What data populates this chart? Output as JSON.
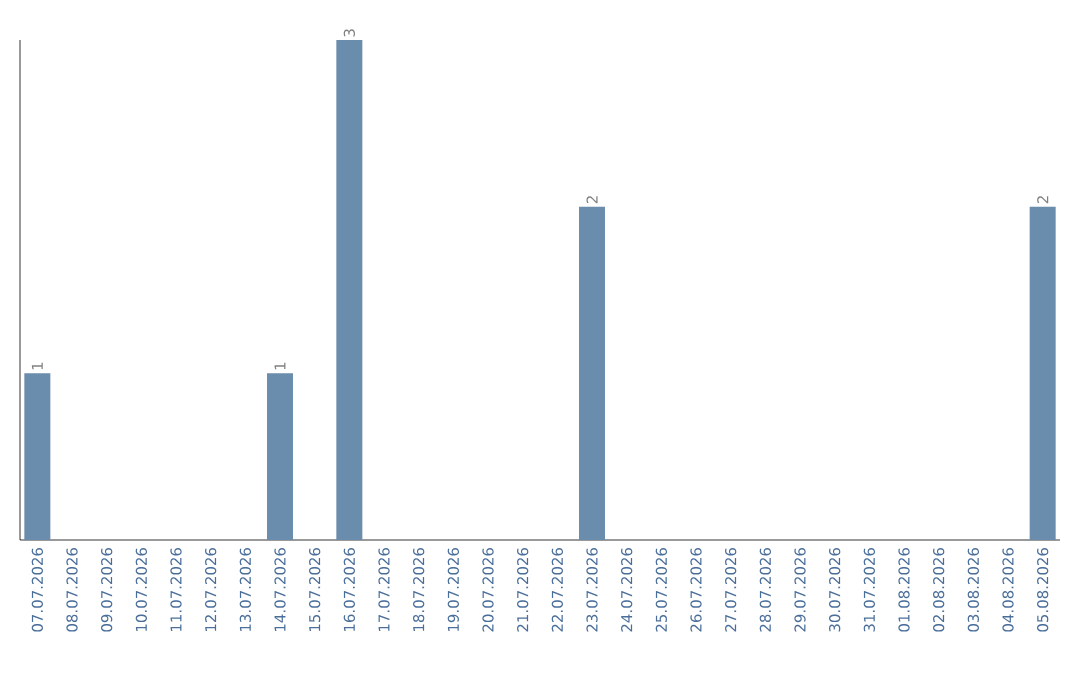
{
  "chart_data": {
    "type": "bar",
    "categories": [
      "07.07.2026",
      "08.07.2026",
      "09.07.2026",
      "10.07.2026",
      "11.07.2026",
      "12.07.2026",
      "13.07.2026",
      "14.07.2026",
      "15.07.2026",
      "16.07.2026",
      "17.07.2026",
      "18.07.2026",
      "19.07.2026",
      "20.07.2026",
      "21.07.2026",
      "22.07.2026",
      "23.07.2026",
      "24.07.2026",
      "25.07.2026",
      "26.07.2026",
      "27.07.2026",
      "28.07.2026",
      "29.07.2026",
      "30.07.2026",
      "31.07.2026",
      "01.08.2026",
      "02.08.2026",
      "03.08.2026",
      "04.08.2026",
      "05.08.2026"
    ],
    "values": [
      1,
      0,
      0,
      0,
      0,
      0,
      0,
      1,
      0,
      3,
      0,
      0,
      0,
      0,
      0,
      0,
      2,
      0,
      0,
      0,
      0,
      0,
      0,
      0,
      0,
      0,
      0,
      0,
      0,
      2
    ],
    "value_labels": [
      "1",
      null,
      null,
      null,
      null,
      null,
      null,
      "1",
      null,
      "3",
      null,
      null,
      null,
      null,
      null,
      null,
      "2",
      null,
      null,
      null,
      null,
      null,
      null,
      null,
      null,
      null,
      null,
      null,
      null,
      "2"
    ],
    "color": "#6a8cad"
  }
}
